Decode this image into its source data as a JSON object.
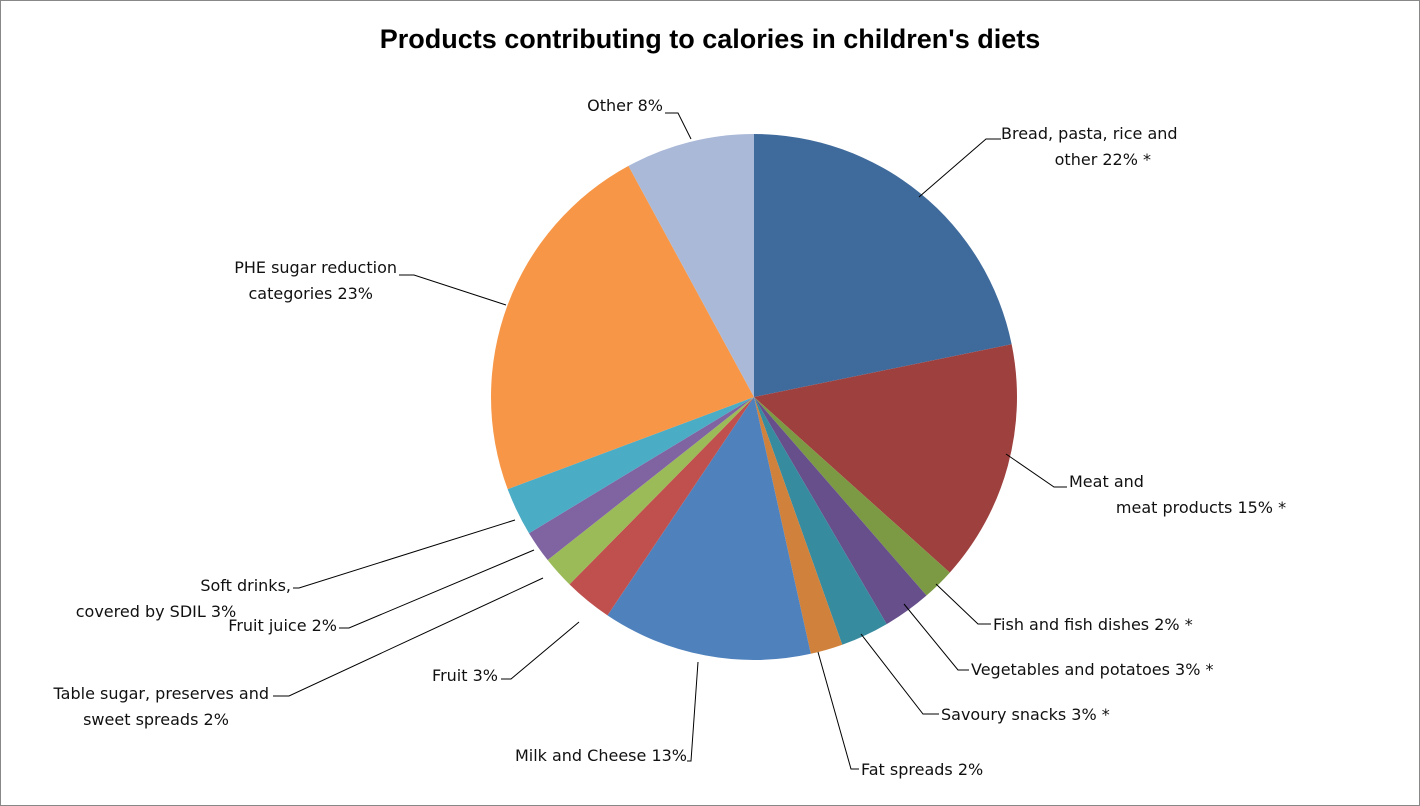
{
  "chart_data": {
    "type": "pie",
    "title": "Products contributing to calories in children's diets",
    "slices": [
      {
        "label": "Bread, pasta, rice and other 22% *",
        "value": 22,
        "color": "#3f6a9c"
      },
      {
        "label": "Meat and meat products 15% *",
        "value": 15,
        "color": "#9e403e"
      },
      {
        "label": "Fish and fish dishes 2% *",
        "value": 2,
        "color": "#7c9a43"
      },
      {
        "label": "Vegetables and potatoes 3% *",
        "value": 3,
        "color": "#664f8b"
      },
      {
        "label": "Savoury snacks 3% *",
        "value": 3,
        "color": "#378b9f"
      },
      {
        "label": "Fat spreads 2%",
        "value": 2,
        "color": "#d0813b"
      },
      {
        "label": "Milk and Cheese 13%",
        "value": 13,
        "color": "#4f81bd"
      },
      {
        "label": "Fruit 3%",
        "value": 3,
        "color": "#c0504d"
      },
      {
        "label": "Table sugar, preserves and sweet spreads 2%",
        "value": 2,
        "color": "#9bbb59"
      },
      {
        "label": "Fruit juice 2%",
        "value": 2,
        "color": "#8064a2"
      },
      {
        "label": "Soft drinks, covered by SDIL 3%",
        "value": 3,
        "color": "#4bacc6"
      },
      {
        "label": "PHE sugar reduction categories 23%",
        "value": 23,
        "color": "#f79646"
      },
      {
        "label": "Other 8%",
        "value": 8,
        "color": "#aab9d8"
      }
    ]
  }
}
